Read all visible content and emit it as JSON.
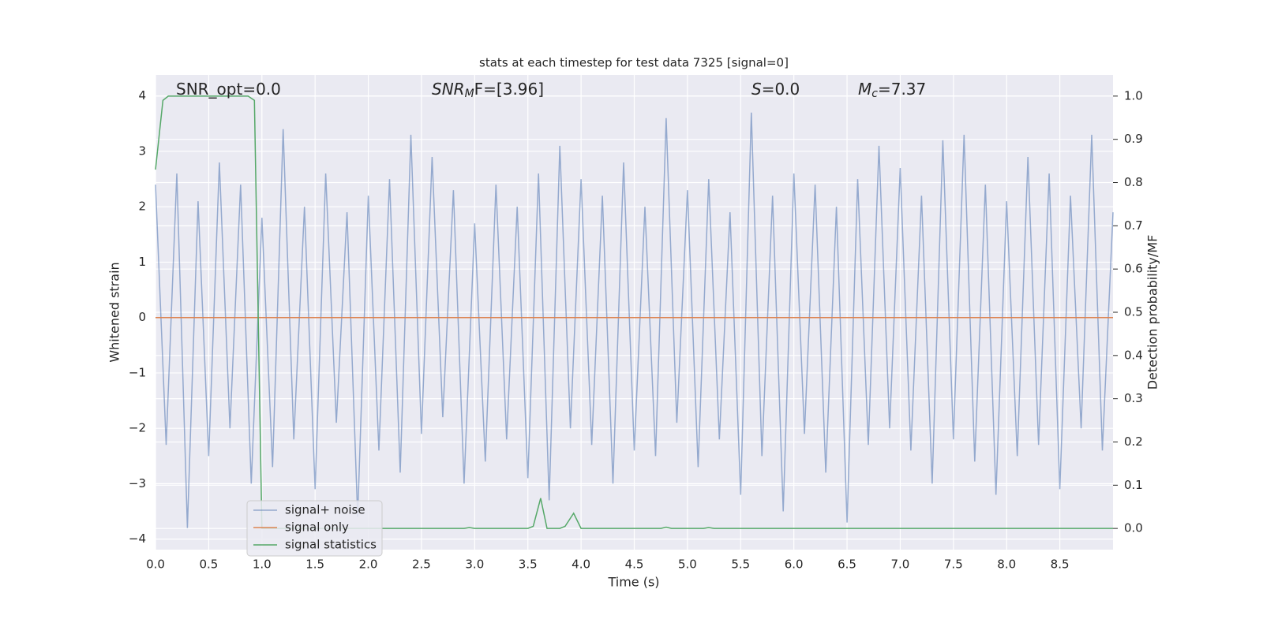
{
  "chart_data": {
    "type": "line",
    "title": "stats at each timestep for test data 7325 [signal=0]",
    "xlabel": "Time (s)",
    "ylabel": "Whitened strain",
    "y2label": "Detection probability/MF",
    "annotations": [
      {
        "text": "SNR_opt=0.0"
      },
      {
        "base": "SNR",
        "sub": "M",
        "after": "F=[3.96]"
      },
      {
        "base": "S",
        "after": "=0.0"
      },
      {
        "base": "M",
        "sub": "c",
        "after": "=7.37"
      }
    ],
    "xlim": [
      0,
      9.0
    ],
    "ylim": [
      -4.19,
      4.38
    ],
    "y2lim": [
      -0.049,
      1.049
    ],
    "xticks": [
      {
        "value": 0,
        "label": "0.0"
      },
      0.5,
      {
        "value": 1,
        "label": "1.0"
      },
      1.5,
      {
        "value": 2,
        "label": "2.0"
      },
      2.5,
      {
        "value": 3,
        "label": "3.0"
      },
      3.5,
      {
        "value": 4,
        "label": "4.0"
      },
      4.5,
      {
        "value": 5,
        "label": "5.0"
      },
      5.5,
      {
        "value": 6,
        "label": "6.0"
      },
      6.5,
      {
        "value": 7,
        "label": "7.0"
      },
      7.5,
      {
        "value": 8,
        "label": "8.0"
      },
      8.5
    ],
    "yticks": [
      {
        "value": -4,
        "label": "−4"
      },
      {
        "value": -3,
        "label": "−3"
      },
      {
        "value": -2,
        "label": "−2"
      },
      {
        "value": -1,
        "label": "−1"
      },
      0,
      1,
      2,
      3,
      4
    ],
    "y2ticks": [
      {
        "value": 0,
        "label": "0.0"
      },
      0.1,
      0.2,
      0.3,
      0.4,
      0.5,
      0.6,
      0.7,
      0.8,
      0.9,
      {
        "value": 1,
        "label": "1.0"
      }
    ],
    "grid": true,
    "legend": true,
    "series": [
      {
        "name": "signal+ noise",
        "color": "#4c72b0",
        "x": [
          0,
          0.1,
          0.2,
          0.3,
          0.4,
          0.5,
          0.6,
          0.7,
          0.8,
          0.9,
          1,
          1.1,
          1.2,
          1.3,
          1.4,
          1.5,
          1.6,
          1.7,
          1.8,
          1.9,
          2,
          2.1,
          2.2,
          2.3,
          2.4,
          2.5,
          2.6,
          2.7,
          2.8,
          2.9,
          3,
          3.1,
          3.2,
          3.3,
          3.4,
          3.5,
          3.6,
          3.7,
          3.8,
          3.9,
          4,
          4.1,
          4.2,
          4.3,
          4.4,
          4.5,
          4.6,
          4.7,
          4.8,
          4.9,
          5,
          5.1,
          5.2,
          5.3,
          5.4,
          5.5,
          5.6,
          5.7,
          5.8,
          5.9,
          6,
          6.1,
          6.2,
          6.3,
          6.4,
          6.5,
          6.6,
          6.7,
          6.8,
          6.9,
          7,
          7.1,
          7.2,
          7.3,
          7.4,
          7.5,
          7.6,
          7.7,
          7.8,
          7.9,
          8,
          8.1,
          8.2,
          8.3,
          8.4,
          8.5,
          8.6,
          8.7,
          8.8,
          8.9,
          9
        ],
        "values": [
          2.4,
          -2.3,
          2.6,
          -3.8,
          2.1,
          -2.5,
          2.8,
          -2.0,
          2.4,
          -3.0,
          1.8,
          -2.7,
          3.4,
          -2.2,
          2.0,
          -3.1,
          2.6,
          -1.9,
          1.9,
          -3.6,
          2.2,
          -2.4,
          2.5,
          -2.8,
          3.3,
          -2.1,
          2.9,
          -1.8,
          2.3,
          -3.0,
          1.7,
          -2.6,
          2.4,
          -2.2,
          2.0,
          -2.9,
          2.6,
          -3.3,
          3.1,
          -2.0,
          2.5,
          -2.3,
          2.2,
          -3.0,
          2.8,
          -2.4,
          2.0,
          -2.5,
          3.6,
          -1.9,
          2.3,
          -2.7,
          2.5,
          -2.2,
          1.9,
          -3.2,
          3.7,
          -2.5,
          2.2,
          -3.5,
          2.6,
          -2.1,
          2.4,
          -2.8,
          2.0,
          -3.7,
          2.5,
          -2.3,
          3.1,
          -2.0,
          2.7,
          -2.4,
          2.2,
          -3.0,
          3.2,
          -2.2,
          3.3,
          -2.6,
          2.4,
          -3.2,
          2.1,
          -2.5,
          2.9,
          -2.3,
          2.6,
          -3.1,
          2.2,
          -2.0,
          3.3,
          -2.4,
          1.9
        ]
      },
      {
        "name": "signal only",
        "color": "#dd8452",
        "x": [
          0,
          9.0
        ],
        "values": [
          0,
          0
        ]
      },
      {
        "name": "signal statistics",
        "color": "#55a868",
        "axis": "y2",
        "x": [
          0,
          0.07,
          0.12,
          0.87,
          0.93,
          1.0,
          2.9,
          2.95,
          3.0,
          3.5,
          3.55,
          3.62,
          3.68,
          3.8,
          3.85,
          3.93,
          4.0,
          4.75,
          4.8,
          4.85,
          5.15,
          5.2,
          5.25,
          9.0
        ],
        "values": [
          0.83,
          0.99,
          1.0,
          1.0,
          0.99,
          0.0,
          0.0,
          0.002,
          0.0,
          0.0,
          0.005,
          0.07,
          0.0,
          0.0,
          0.005,
          0.035,
          0.0,
          0.0,
          0.003,
          0.0,
          0.0,
          0.002,
          0.0,
          0.0
        ]
      }
    ]
  }
}
